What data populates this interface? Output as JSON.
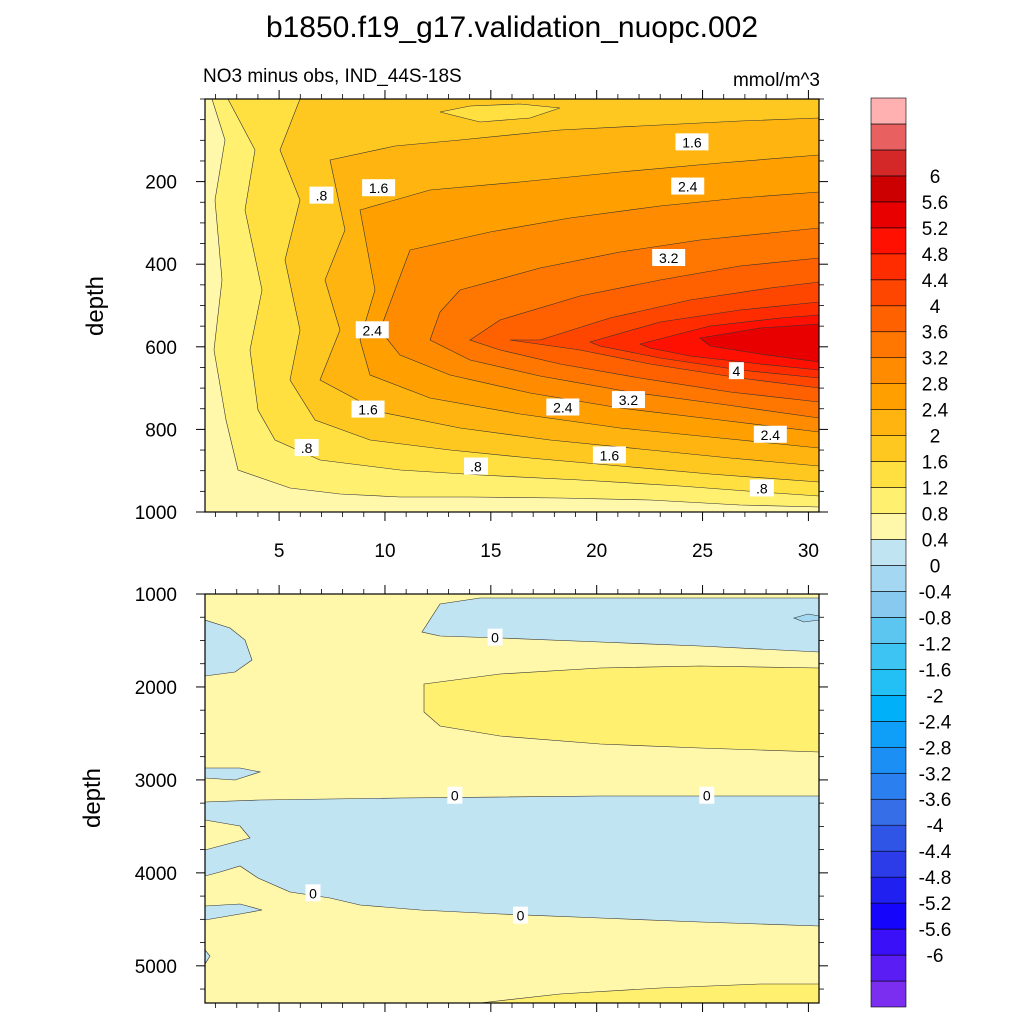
{
  "chart_data": {
    "type": "heatmap",
    "title": "b1850.f19_g17.validation_nuopc.002",
    "colorbar": {
      "colors": [
        "#7b2df0",
        "#5a1ef5",
        "#3a10f8",
        "#1505fa",
        "#2020f0",
        "#2b3ce8",
        "#2f55e6",
        "#356ee6",
        "#2b7fef",
        "#1c8ff5",
        "#0f9ff8",
        "#00b0f8",
        "#22c0f5",
        "#3dc4f2",
        "#5cc6f0",
        "#87c9ef",
        "#a4d8f2",
        "#c0e4f2",
        "#fff7aa",
        "#fff070",
        "#ffe040",
        "#ffc820",
        "#ffb410",
        "#ffa000",
        "#ff8c00",
        "#ff7600",
        "#ff6000",
        "#ff4600",
        "#ff2c00",
        "#ff1000",
        "#e80000",
        "#cc0000",
        "#d42828",
        "#e86060",
        "#ffb0b0"
      ],
      "labels": [
        "-6",
        "-5.6",
        "-5.2",
        "-4.8",
        "-4.4",
        "-4",
        "-3.6",
        "-3.2",
        "-2.8",
        "-2.4",
        "-2",
        "-1.6",
        "-1.2",
        "-0.8",
        "-0.4",
        "0",
        "0.4",
        "0.8",
        "1.2",
        "1.6",
        "2",
        "2.4",
        "2.8",
        "3.2",
        "3.6",
        "4",
        "4.4",
        "4.8",
        "5.2",
        "5.6",
        "6"
      ]
    },
    "panels": [
      {
        "left_label": "NO3 minus obs, IND_44S-18S",
        "right_label": "mmol/m^3",
        "ylabel": "depth",
        "ylim": [
          0,
          1000
        ],
        "xlim": [
          1.5,
          30.5
        ],
        "yticks": [
          200,
          400,
          600,
          800,
          1000
        ],
        "ytick_labels": [
          "200",
          "400",
          "600",
          "800",
          "1000"
        ],
        "xticks": [
          5,
          10,
          15,
          20,
          25,
          30
        ],
        "xtick_labels": [
          "5",
          "10",
          "15",
          "20",
          "25",
          "30"
        ],
        "contour_labels": [
          {
            "text": "1.6",
            "x": 24.5,
            "y": 105
          },
          {
            "text": ".8",
            "x": 14.3,
            "y": 890
          },
          {
            "text": "2.4",
            "x": 28.2,
            "y": 813
          },
          {
            "text": "3.2",
            "x": 23.4,
            "y": 385
          },
          {
            "text": "2.4",
            "x": 24.3,
            "y": 212
          },
          {
            "text": "1.6",
            "x": 9.7,
            "y": 216
          },
          {
            "text": "2.4",
            "x": 18.4,
            "y": 747
          },
          {
            "text": "4",
            "x": 26.6,
            "y": 659
          },
          {
            "text": "3.2",
            "x": 21.5,
            "y": 729
          },
          {
            "text": "1.6",
            "x": 9.2,
            "y": 752
          },
          {
            "text": ".8",
            "x": 27.8,
            "y": 943
          },
          {
            "text": "1.6",
            "x": 20.6,
            "y": 863
          },
          {
            "text": "2.4",
            "x": 9.4,
            "y": 560
          },
          {
            "text": ".8",
            "x": 6.3,
            "y": 845
          },
          {
            "text": ".8",
            "x": 7.0,
            "y": 234
          }
        ]
      },
      {
        "left_label": "",
        "right_label": "",
        "ylabel": "depth",
        "ylim": [
          1000,
          5400
        ],
        "xlim": [
          1.5,
          30.5
        ],
        "yticks": [
          1000,
          2000,
          3000,
          4000,
          5000
        ],
        "ytick_labels": [
          "1000",
          "2000",
          "3000",
          "4000",
          "5000"
        ],
        "xticks": [
          5,
          10,
          15,
          20,
          25,
          30
        ],
        "xtick_labels": [],
        "contour_labels": [
          {
            "text": "0",
            "x": 15.2,
            "y": 1470
          },
          {
            "text": "0",
            "x": 13.3,
            "y": 3170
          },
          {
            "text": "0",
            "x": 25.2,
            "y": 3170
          },
          {
            "text": "0",
            "x": 16.4,
            "y": 4460
          },
          {
            "text": "0",
            "x": 6.6,
            "y": 4220
          }
        ]
      }
    ]
  }
}
